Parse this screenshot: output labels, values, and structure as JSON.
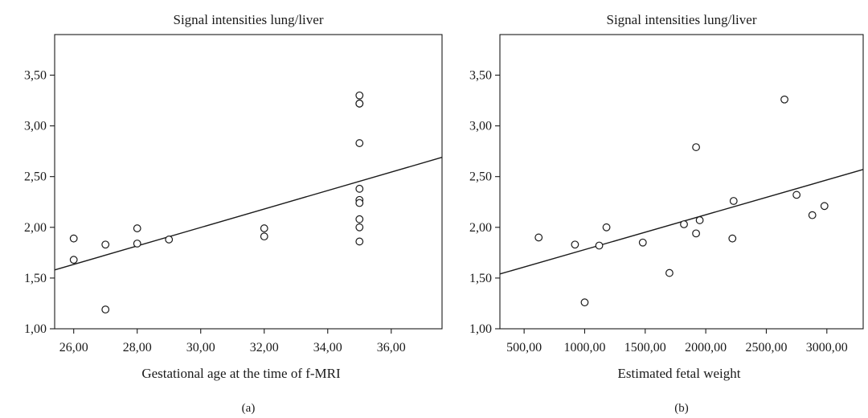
{
  "chart_data": [
    {
      "type": "scatter",
      "panel_label": "(a)",
      "title": "Signal intensities lung/liver",
      "xlabel": "Gestational age at the time of f-MRI",
      "ylabel": "",
      "xlim": [
        25.4,
        37.6
      ],
      "ylim": [
        1.0,
        3.9
      ],
      "xticks": [
        26,
        28,
        30,
        32,
        34,
        36
      ],
      "xtick_labels": [
        "26,00",
        "28,00",
        "30,00",
        "32,00",
        "34,00",
        "36,00"
      ],
      "yticks": [
        1.0,
        1.5,
        2.0,
        2.5,
        3.0,
        3.5
      ],
      "ytick_labels": [
        "1,00",
        "1,50",
        "2,00",
        "2,50",
        "3,00",
        "3,50"
      ],
      "points": [
        {
          "x": 26.0,
          "y": 1.89
        },
        {
          "x": 26.0,
          "y": 1.68
        },
        {
          "x": 27.0,
          "y": 1.83
        },
        {
          "x": 27.0,
          "y": 1.19
        },
        {
          "x": 28.0,
          "y": 1.99
        },
        {
          "x": 28.0,
          "y": 1.84
        },
        {
          "x": 29.0,
          "y": 1.88
        },
        {
          "x": 32.0,
          "y": 1.99
        },
        {
          "x": 32.0,
          "y": 1.91
        },
        {
          "x": 35.0,
          "y": 3.3
        },
        {
          "x": 35.0,
          "y": 3.22
        },
        {
          "x": 35.0,
          "y": 3.22
        },
        {
          "x": 35.0,
          "y": 2.83
        },
        {
          "x": 35.0,
          "y": 2.38
        },
        {
          "x": 35.0,
          "y": 2.27
        },
        {
          "x": 35.0,
          "y": 2.24
        },
        {
          "x": 35.0,
          "y": 2.08
        },
        {
          "x": 35.0,
          "y": 2.0
        },
        {
          "x": 35.0,
          "y": 1.86
        }
      ],
      "fit_line": {
        "x": [
          25.4,
          37.6
        ],
        "y": [
          1.58,
          2.69
        ]
      },
      "grid": false
    },
    {
      "type": "scatter",
      "panel_label": "(b)",
      "title": "Signal intensities lung/liver",
      "xlabel": "Estimated fetal weight",
      "ylabel": "",
      "xlim": [
        300,
        3300
      ],
      "ylim": [
        1.0,
        3.9
      ],
      "xticks": [
        500,
        1000,
        1500,
        2000,
        2500,
        3000
      ],
      "xtick_labels": [
        "500,00",
        "1000,00",
        "1500,00",
        "2000,00",
        "2500,00",
        "3000,00"
      ],
      "yticks": [
        1.0,
        1.5,
        2.0,
        2.5,
        3.0,
        3.5
      ],
      "ytick_labels": [
        "1,00",
        "1,50",
        "2,00",
        "2,50",
        "3,00",
        "3,50"
      ],
      "points": [
        {
          "x": 620,
          "y": 1.9
        },
        {
          "x": 920,
          "y": 1.83
        },
        {
          "x": 1000,
          "y": 1.26
        },
        {
          "x": 1120,
          "y": 1.82
        },
        {
          "x": 1180,
          "y": 2.0
        },
        {
          "x": 1480,
          "y": 1.85
        },
        {
          "x": 1700,
          "y": 1.55
        },
        {
          "x": 1820,
          "y": 2.03
        },
        {
          "x": 1920,
          "y": 2.79
        },
        {
          "x": 1920,
          "y": 1.94
        },
        {
          "x": 1950,
          "y": 2.07
        },
        {
          "x": 2220,
          "y": 1.89
        },
        {
          "x": 2230,
          "y": 2.26
        },
        {
          "x": 2650,
          "y": 3.26
        },
        {
          "x": 2750,
          "y": 2.32
        },
        {
          "x": 2880,
          "y": 2.12
        },
        {
          "x": 2980,
          "y": 2.21
        }
      ],
      "fit_line": {
        "x": [
          300,
          3300
        ],
        "y": [
          1.54,
          2.57
        ]
      },
      "grid": false
    }
  ]
}
